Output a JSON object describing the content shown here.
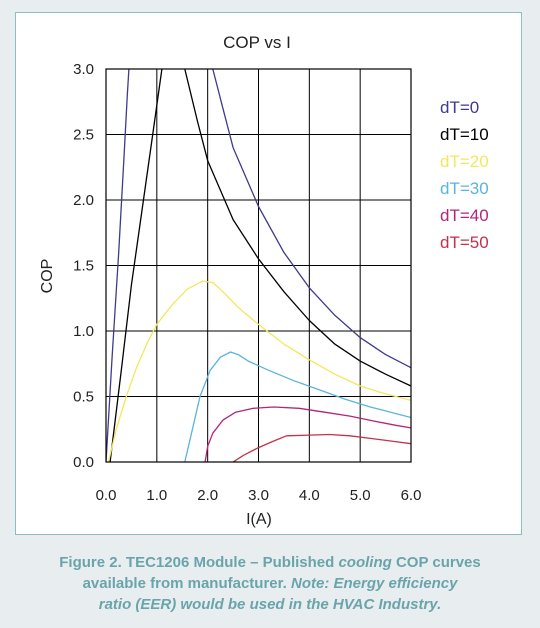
{
  "chart_data": {
    "type": "line",
    "title": "COP vs I",
    "xlabel": "I(A)",
    "ylabel": "COP",
    "xlim": [
      0,
      6
    ],
    "ylim": [
      0,
      3
    ],
    "x_ticks": [
      "0.0",
      "1.0",
      "2.0",
      "3.0",
      "4.0",
      "5.0",
      "6.0"
    ],
    "y_ticks": [
      "0.0",
      "0.5",
      "1.0",
      "1.5",
      "2.0",
      "2.5",
      "3.0"
    ],
    "grid": true,
    "legend_position": "right",
    "series": [
      {
        "name": "dT=0",
        "color": "#3f3a8c",
        "points": [
          [
            0,
            0
          ],
          [
            0.12,
            0.8
          ],
          [
            0.25,
            1.6
          ],
          [
            0.35,
            2.3
          ],
          [
            0.42,
            2.8
          ],
          [
            0.45,
            3.0
          ]
        ]
      },
      {
        "name": "dT=10",
        "color": "#000000",
        "points": [
          [
            0.08,
            0
          ],
          [
            0.3,
            0.7
          ],
          [
            0.5,
            1.35
          ],
          [
            0.7,
            1.9
          ],
          [
            0.9,
            2.45
          ],
          [
            1.1,
            3.0
          ]
        ]
      },
      {
        "name": "dT=0",
        "color": "#3f3a8c",
        "points": [
          [
            2.1,
            3.0
          ],
          [
            2.3,
            2.7
          ],
          [
            2.5,
            2.4
          ],
          [
            3.0,
            1.95
          ],
          [
            3.5,
            1.6
          ],
          [
            4.0,
            1.33
          ],
          [
            4.5,
            1.12
          ],
          [
            5.0,
            0.95
          ],
          [
            5.5,
            0.82
          ],
          [
            6.0,
            0.72
          ]
        ]
      },
      {
        "name": "dT=10",
        "color": "#000000",
        "points": [
          [
            1.55,
            3.0
          ],
          [
            1.8,
            2.6
          ],
          [
            2.0,
            2.3
          ],
          [
            2.5,
            1.85
          ],
          [
            3.0,
            1.55
          ],
          [
            3.5,
            1.3
          ],
          [
            4.0,
            1.08
          ],
          [
            4.5,
            0.9
          ],
          [
            5.0,
            0.77
          ],
          [
            5.5,
            0.67
          ],
          [
            6.0,
            0.58
          ]
        ]
      },
      {
        "name": "dT=20",
        "color": "#f2e85c",
        "points": [
          [
            0.05,
            0
          ],
          [
            0.2,
            0.25
          ],
          [
            0.4,
            0.5
          ],
          [
            0.6,
            0.72
          ],
          [
            0.8,
            0.9
          ],
          [
            1.0,
            1.05
          ],
          [
            1.3,
            1.2
          ],
          [
            1.6,
            1.32
          ],
          [
            1.9,
            1.38
          ],
          [
            2.1,
            1.37
          ],
          [
            2.3,
            1.3
          ],
          [
            2.6,
            1.18
          ],
          [
            3.0,
            1.05
          ],
          [
            3.5,
            0.9
          ],
          [
            4.0,
            0.78
          ],
          [
            4.5,
            0.67
          ],
          [
            5.0,
            0.58
          ],
          [
            5.5,
            0.52
          ],
          [
            6.0,
            0.47
          ]
        ]
      },
      {
        "name": "dT=30",
        "color": "#5ab4dc",
        "points": [
          [
            1.55,
            0
          ],
          [
            1.7,
            0.25
          ],
          [
            1.85,
            0.5
          ],
          [
            2.05,
            0.7
          ],
          [
            2.25,
            0.8
          ],
          [
            2.45,
            0.84
          ],
          [
            2.6,
            0.82
          ],
          [
            2.8,
            0.77
          ],
          [
            3.2,
            0.7
          ],
          [
            3.7,
            0.62
          ],
          [
            4.2,
            0.55
          ],
          [
            4.7,
            0.48
          ],
          [
            5.2,
            0.42
          ],
          [
            5.6,
            0.38
          ],
          [
            6.0,
            0.34
          ]
        ]
      },
      {
        "name": "dT=40",
        "color": "#b3247a",
        "points": [
          [
            1.95,
            0
          ],
          [
            2.0,
            0.12
          ],
          [
            2.1,
            0.22
          ],
          [
            2.3,
            0.32
          ],
          [
            2.55,
            0.38
          ],
          [
            2.9,
            0.41
          ],
          [
            3.3,
            0.42
          ],
          [
            3.8,
            0.41
          ],
          [
            4.3,
            0.38
          ],
          [
            4.8,
            0.35
          ],
          [
            5.3,
            0.31
          ],
          [
            5.7,
            0.28
          ],
          [
            6.0,
            0.26
          ]
        ]
      },
      {
        "name": "dT=50",
        "color": "#c4314a",
        "points": [
          [
            2.5,
            0
          ],
          [
            2.7,
            0.05
          ],
          [
            3.0,
            0.11
          ],
          [
            3.3,
            0.16
          ],
          [
            3.55,
            0.2
          ],
          [
            4.0,
            0.205
          ],
          [
            4.4,
            0.21
          ],
          [
            4.8,
            0.2
          ],
          [
            5.2,
            0.18
          ],
          [
            5.6,
            0.16
          ],
          [
            6.0,
            0.14
          ]
        ]
      }
    ],
    "legend": [
      {
        "label": "dT=0",
        "color": "#3f3a8c"
      },
      {
        "label": "dT=10",
        "color": "#000000"
      },
      {
        "label": "dT=20",
        "color": "#f2e85c"
      },
      {
        "label": "dT=30",
        "color": "#5ab4dc"
      },
      {
        "label": "dT=40",
        "color": "#b3247a"
      },
      {
        "label": "dT=50",
        "color": "#c4314a"
      }
    ]
  },
  "caption": {
    "line1_part1": "Figure 2. TEC1206 Module – Published ",
    "line1_italic": "cooling",
    "line1_part2": " COP curves",
    "line2_part1": "available from manufacturer. ",
    "line2_italic": "Note: Energy efficiency",
    "line3_italic": "ratio (EER) would be used in the HVAC Industry."
  },
  "colors": {
    "panel_border": "#8fbcc3",
    "caption_text": "#6aa4ab",
    "background": "#e8eef0"
  }
}
